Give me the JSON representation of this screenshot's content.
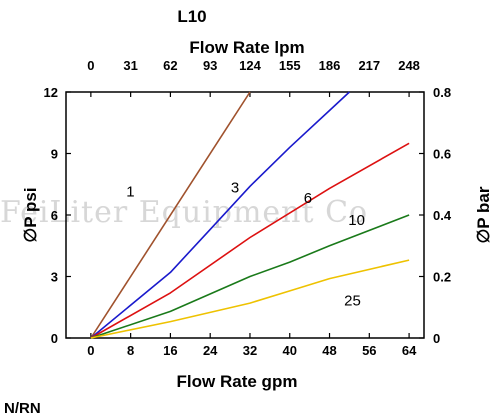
{
  "watermark": "FeiLiter Equipment Co",
  "footer_label": "N/RN",
  "chart_data": {
    "type": "line",
    "title": "L10",
    "xlabel": "Flow Rate gpm",
    "x2label": "Flow Rate lpm",
    "ylabel": "∅P psi",
    "y2label": "∅P bar",
    "xlim": [
      -5,
      67
    ],
    "ylim": [
      0,
      12
    ],
    "y2lim": [
      0,
      0.8
    ],
    "x_ticks": [
      "0",
      "8",
      "16",
      "24",
      "32",
      "40",
      "48",
      "56",
      "64"
    ],
    "x2_ticks": [
      "0",
      "31",
      "62",
      "93",
      "124",
      "155",
      "186",
      "217",
      "248"
    ],
    "y_ticks": [
      "0",
      "3",
      "6",
      "9",
      "12"
    ],
    "y2_ticks": [
      "0",
      "0.2",
      "0.4",
      "0.6",
      "0.8"
    ],
    "grid": false,
    "series": [
      {
        "name": "1",
        "color": "#a0522d",
        "points": [
          [
            0,
            0
          ],
          [
            32,
            12
          ]
        ]
      },
      {
        "name": "3",
        "color": "#1a1acc",
        "points": [
          [
            0,
            0
          ],
          [
            16,
            3.2
          ],
          [
            24,
            5.3
          ],
          [
            32,
            7.4
          ],
          [
            40,
            9.3
          ],
          [
            48,
            11.1
          ],
          [
            52,
            12
          ]
        ]
      },
      {
        "name": "6",
        "color": "#dd1111",
        "points": [
          [
            0,
            0
          ],
          [
            16,
            2.2
          ],
          [
            32,
            4.9
          ],
          [
            48,
            7.3
          ],
          [
            64,
            9.5
          ]
        ]
      },
      {
        "name": "10",
        "color": "#1a7a1a",
        "points": [
          [
            0,
            0
          ],
          [
            16,
            1.3
          ],
          [
            32,
            3.0
          ],
          [
            40,
            3.7
          ],
          [
            48,
            4.5
          ],
          [
            64,
            6.0
          ]
        ]
      },
      {
        "name": "25",
        "color": "#eec200",
        "points": [
          [
            0,
            0
          ],
          [
            16,
            0.8
          ],
          [
            32,
            1.7
          ],
          [
            40,
            2.3
          ],
          [
            48,
            2.9
          ],
          [
            64,
            3.8
          ]
        ]
      }
    ]
  }
}
